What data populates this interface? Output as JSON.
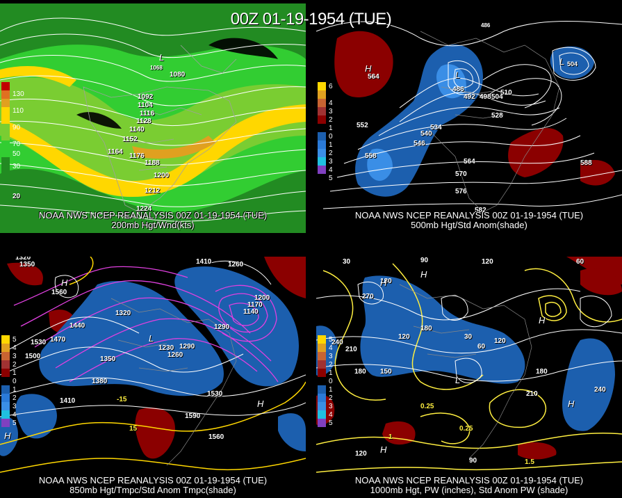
{
  "header": {
    "title": "00Z 01-19-1954 (TUE)"
  },
  "colors": {
    "jet_light": "#32cd32",
    "jet_mid": "#7acd32",
    "jet_yellow": "#ffd700",
    "jet_orange": "#e0a020",
    "pos_anom": "#8b0000",
    "neg_anom": "#1c5fae",
    "neg_anom_light": "#3a8ee6",
    "temp_contour": "#e040e0",
    "pw_contour": "#ffef40"
  },
  "panels": [
    {
      "id": "200mb",
      "caption_line1": "NOAA NWS NCEP REANALYSIS 00Z 01-19-1954 (TUE)",
      "caption_line2": "200mb Hgt/Wnd(kts)",
      "legend": {
        "labels": [
          "130",
          "110",
          "90",
          "70",
          "50",
          "30"
        ],
        "colors": [
          "#c00000",
          "#e07020",
          "#e0a020",
          "#ffd700",
          "#7acd32",
          "#32cd32",
          "#228b22"
        ]
      },
      "labels": [
        "1080",
        "1092",
        "1104",
        "1116",
        "1128",
        "1140",
        "1152",
        "1164",
        "1176",
        "1188",
        "1200",
        "1212",
        "1224",
        "20",
        "L",
        "1068"
      ]
    },
    {
      "id": "500mb",
      "caption_line1": "NOAA NWS NCEP REANALYSIS 00Z 01-19-1954 (TUE)",
      "caption_line2": "500mb Hgt/Std Anom(shade)",
      "legend": {
        "labels": [
          "6",
          "4",
          "3",
          "2",
          "1",
          "0",
          "1",
          "2",
          "3",
          "4",
          "5"
        ],
        "colors": [
          "#ffd700",
          "#e0a020",
          "#c86432",
          "#a03232",
          "#8b0000",
          "#000000",
          "#1c5fae",
          "#2a7ad8",
          "#3a8ee6",
          "#20c0e0",
          "#8040c0"
        ]
      },
      "labels": [
        "H",
        "564",
        "L",
        "486",
        "492",
        "498",
        "504",
        "510",
        "528",
        "534",
        "540",
        "546",
        "552",
        "558",
        "564",
        "570",
        "576",
        "582",
        "588",
        "L",
        "504",
        "486"
      ]
    },
    {
      "id": "850mb",
      "caption_line1": "NOAA NWS NCEP REANALYSIS 00Z 01-19-1954 (TUE)",
      "caption_line2": "850mb Hgt/Tmpc/Std Anom Tmpc(shade)",
      "legend": {
        "labels": [
          "5",
          "4",
          "3",
          "2",
          "1",
          "0",
          "1",
          "2",
          "3",
          "4",
          "5"
        ],
        "colors": [
          "#ffd700",
          "#e0a020",
          "#c86432",
          "#a03232",
          "#8b0000",
          "#000000",
          "#1c5fae",
          "#2a7ad8",
          "#3a8ee6",
          "#20c0e0",
          "#8040c0"
        ]
      },
      "labels": [
        "1320",
        "1350",
        "H",
        "1560",
        "1440",
        "1470",
        "1530",
        "1500",
        "1320",
        "1350",
        "1380",
        "1410",
        "L",
        "1230",
        "1260",
        "1290",
        "1410",
        "1140",
        "1170",
        "1200",
        "1260",
        "1290",
        "1530",
        "H",
        "1590",
        "1560",
        "-15",
        "15",
        "H"
      ]
    },
    {
      "id": "1000mb",
      "caption_line1": "NOAA NWS NCEP REANALYSIS 00Z 01-19-1954 (TUE)",
      "caption_line2": "1000mb Hgt, PW (inches), Std Anom PW (shade)",
      "legend": {
        "labels": [
          "5",
          "4",
          "3",
          "2",
          "1",
          "0",
          "1",
          "2",
          "3",
          "4",
          "5"
        ],
        "colors": [
          "#ffd700",
          "#e0a020",
          "#c86432",
          "#a03232",
          "#8b0000",
          "#000000",
          "#1c5fae",
          "#2a7ad8",
          "#3a8ee6",
          "#20c0e0",
          "#8040c0"
        ]
      },
      "labels": [
        "30",
        "90",
        "120",
        "180",
        "H",
        "270",
        "H",
        "180",
        "120",
        "240",
        "210",
        "180",
        "150",
        "L",
        "30",
        "60",
        "120",
        "180",
        "210",
        "240",
        "H",
        "0.25",
        "0.25",
        "1",
        "1.5",
        "120",
        "90",
        "60",
        "H",
        "H"
      ]
    }
  ]
}
